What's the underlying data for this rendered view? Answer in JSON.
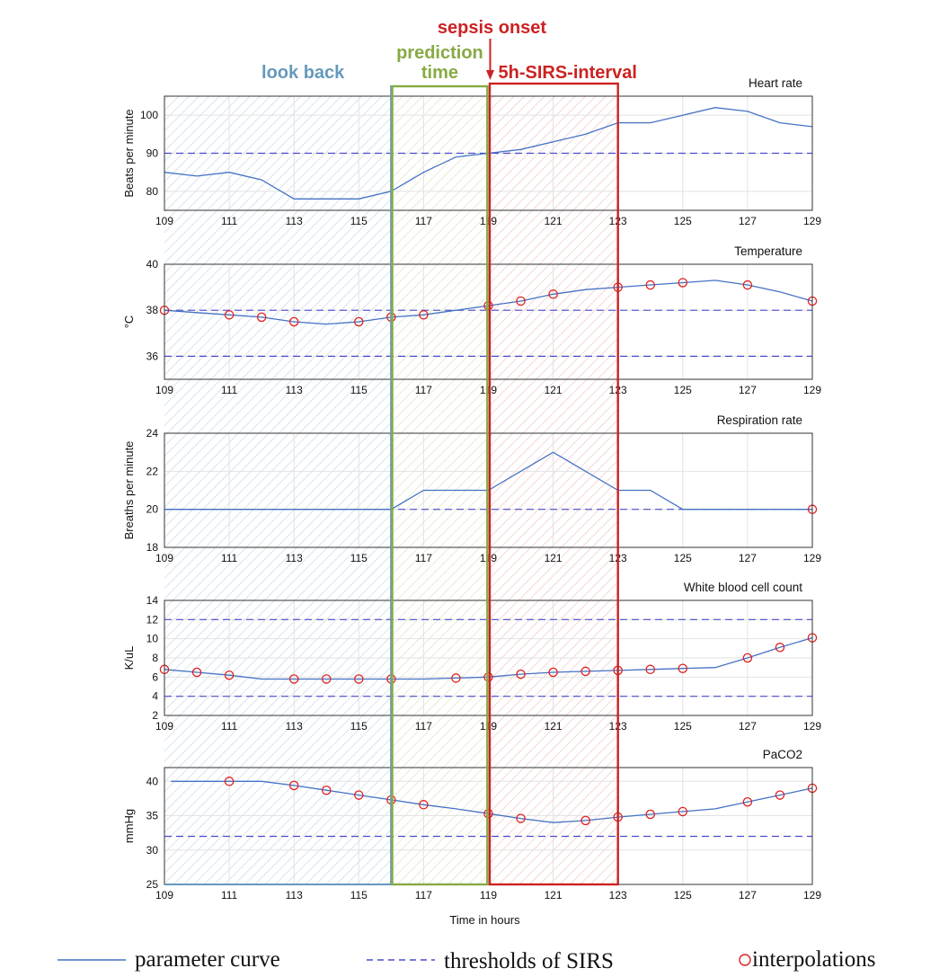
{
  "chart_data": {
    "type": "line",
    "x_range": [
      109,
      129
    ],
    "x_ticks": [
      109,
      111,
      113,
      115,
      117,
      119,
      121,
      123,
      125,
      127,
      129
    ],
    "x_tick_labels": [
      "109",
      "111",
      "113",
      "115",
      "117",
      "119",
      "121",
      "123",
      "125",
      "127",
      "129"
    ],
    "xlabel": "Time in hours",
    "grid": true,
    "regions": [
      {
        "label": "look back",
        "x": [
          109,
          116
        ],
        "color": "#6699bb"
      },
      {
        "label": "prediction time",
        "label_lines": [
          "prediction",
          "time"
        ],
        "x": [
          116,
          119
        ],
        "color": "#88aa44"
      },
      {
        "label": "5h-SIRS-interval",
        "x": [
          119,
          123
        ],
        "color": "#cc2222"
      }
    ],
    "events": [
      {
        "label": "sepsis onset",
        "x": 119,
        "color": "#cc2222"
      }
    ],
    "legend": {
      "position": "bottom",
      "entries": [
        {
          "label": "parameter curve",
          "style": "solid-line",
          "color": "#4472c4"
        },
        {
          "label": "thresholds of SIRS",
          "style": "dashed-line",
          "color": "#4b4bcc"
        },
        {
          "label": "interpolations",
          "style": "circle-marker",
          "color": "#dd2222"
        }
      ]
    },
    "panels": [
      {
        "title": "Heart rate",
        "ylabel": "Beats per minute",
        "ylim": [
          75,
          105
        ],
        "yticks": [
          80,
          90,
          100
        ],
        "series": [
          {
            "x": [
              109,
              110,
              111,
              112,
              113,
              114,
              115,
              116,
              117,
              118,
              119,
              120,
              121,
              122,
              123,
              124,
              125,
              126,
              127,
              128,
              129
            ],
            "y": [
              85,
              84,
              85,
              83,
              78,
              78,
              78,
              80,
              85,
              89,
              90,
              91,
              93,
              95,
              98,
              98,
              100,
              102,
              101,
              98,
              97
            ]
          }
        ],
        "thresholds": [
          90
        ],
        "interpolations": []
      },
      {
        "title": "Temperature",
        "ylabel": "°C",
        "ylim": [
          35,
          40
        ],
        "yticks": [
          36,
          38,
          40
        ],
        "series": [
          {
            "x": [
              109,
              110,
              111,
              112,
              113,
              114,
              115,
              116,
              117,
              118,
              119,
              120,
              121,
              122,
              123,
              124,
              125,
              126,
              127,
              128,
              129
            ],
            "y": [
              38,
              37.9,
              37.8,
              37.7,
              37.5,
              37.4,
              37.5,
              37.7,
              37.8,
              38,
              38.2,
              38.4,
              38.7,
              38.9,
              39,
              39.1,
              39.2,
              39.3,
              39.1,
              38.8,
              38.4
            ]
          }
        ],
        "thresholds": [
          36,
          38
        ],
        "interpolations": [
          {
            "x": 109,
            "y": 38
          },
          {
            "x": 111,
            "y": 37.8
          },
          {
            "x": 112,
            "y": 37.7
          },
          {
            "x": 113,
            "y": 37.5
          },
          {
            "x": 115,
            "y": 37.5
          },
          {
            "x": 116,
            "y": 37.7
          },
          {
            "x": 117,
            "y": 37.8
          },
          {
            "x": 119,
            "y": 38.2
          },
          {
            "x": 120,
            "y": 38.4
          },
          {
            "x": 121,
            "y": 38.7
          },
          {
            "x": 123,
            "y": 39
          },
          {
            "x": 124,
            "y": 39.1
          },
          {
            "x": 125,
            "y": 39.2
          },
          {
            "x": 127,
            "y": 39.1
          },
          {
            "x": 129,
            "y": 38.4
          }
        ]
      },
      {
        "title": "Respiration rate",
        "ylabel": "Breaths per minute",
        "ylim": [
          18,
          24
        ],
        "yticks": [
          18,
          20,
          22,
          24
        ],
        "series": [
          {
            "x": [
              109,
              116,
              117,
              119,
              121,
              123,
              124,
              125,
              129
            ],
            "y": [
              20,
              20,
              21,
              21,
              23,
              21,
              21,
              20,
              20
            ]
          }
        ],
        "thresholds": [
          20
        ],
        "interpolations": [
          {
            "x": 129,
            "y": 20
          }
        ]
      },
      {
        "title": "White blood cell count",
        "ylabel": "K/uL",
        "ylim": [
          2,
          14
        ],
        "yticks": [
          2,
          4,
          6,
          8,
          10,
          12,
          14
        ],
        "series": [
          {
            "x": [
              109,
              110,
              111,
              112,
              113,
              114,
              115,
              116,
              117,
              118,
              119,
              120,
              121,
              122,
              123,
              124,
              125,
              126,
              127,
              128,
              129
            ],
            "y": [
              6.8,
              6.5,
              6.2,
              5.8,
              5.8,
              5.8,
              5.8,
              5.8,
              5.8,
              5.9,
              6.0,
              6.3,
              6.5,
              6.6,
              6.7,
              6.8,
              6.9,
              7.0,
              8.0,
              9.1,
              10.1
            ]
          }
        ],
        "thresholds": [
          4,
          12
        ],
        "interpolations": [
          {
            "x": 109,
            "y": 6.8
          },
          {
            "x": 110,
            "y": 6.5
          },
          {
            "x": 111,
            "y": 6.2
          },
          {
            "x": 113,
            "y": 5.8
          },
          {
            "x": 114,
            "y": 5.8
          },
          {
            "x": 115,
            "y": 5.8
          },
          {
            "x": 116,
            "y": 5.8
          },
          {
            "x": 118,
            "y": 5.9
          },
          {
            "x": 119,
            "y": 6.0
          },
          {
            "x": 120,
            "y": 6.3
          },
          {
            "x": 121,
            "y": 6.5
          },
          {
            "x": 122,
            "y": 6.6
          },
          {
            "x": 123,
            "y": 6.7
          },
          {
            "x": 124,
            "y": 6.8
          },
          {
            "x": 125,
            "y": 6.9
          },
          {
            "x": 127,
            "y": 8.0
          },
          {
            "x": 128,
            "y": 9.1
          },
          {
            "x": 129,
            "y": 10.1
          }
        ]
      },
      {
        "title": "PaCO2",
        "ylabel": "mmHg",
        "ylim": [
          25,
          42
        ],
        "yticks": [
          25,
          30,
          35,
          40
        ],
        "series": [
          {
            "x": [
              109.2,
              110,
              111,
              112,
              113,
              114,
              115,
              116,
              117,
              118,
              119,
              120,
              121,
              122,
              123,
              124,
              125,
              126,
              127,
              128,
              129
            ],
            "y": [
              40,
              40,
              40,
              40,
              39.4,
              38.7,
              38,
              37.3,
              36.6,
              36,
              35.3,
              34.6,
              34,
              34.3,
              34.8,
              35.2,
              35.6,
              36,
              37,
              38,
              39
            ]
          }
        ],
        "thresholds": [
          32
        ],
        "interpolations": [
          {
            "x": 111,
            "y": 40
          },
          {
            "x": 113,
            "y": 39.4
          },
          {
            "x": 114,
            "y": 38.7
          },
          {
            "x": 115,
            "y": 38
          },
          {
            "x": 116,
            "y": 37.3
          },
          {
            "x": 117,
            "y": 36.6
          },
          {
            "x": 119,
            "y": 35.3
          },
          {
            "x": 120,
            "y": 34.6
          },
          {
            "x": 122,
            "y": 34.3
          },
          {
            "x": 123,
            "y": 34.8
          },
          {
            "x": 124,
            "y": 35.2
          },
          {
            "x": 125,
            "y": 35.6
          },
          {
            "x": 127,
            "y": 37
          },
          {
            "x": 128,
            "y": 38
          },
          {
            "x": 129,
            "y": 39
          }
        ]
      }
    ]
  }
}
